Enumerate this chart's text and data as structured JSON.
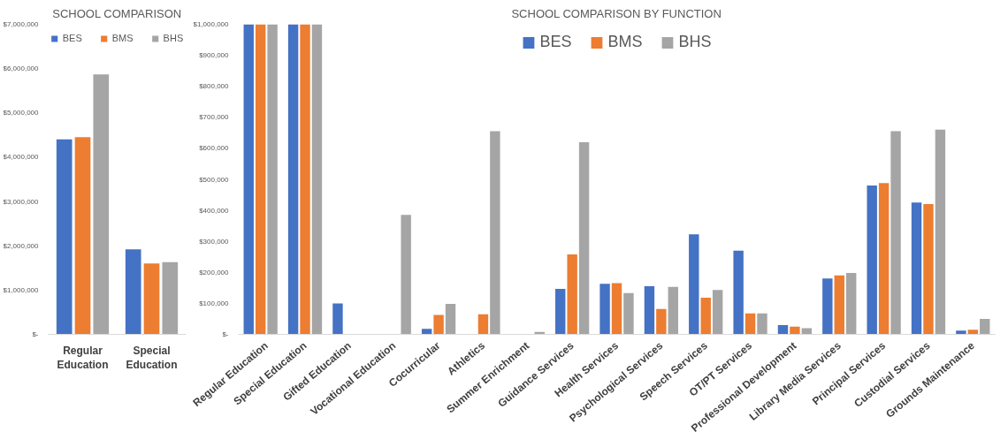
{
  "chart_data": [
    {
      "type": "bar",
      "title": "SCHOOL COMPARISON",
      "categories": [
        "Regular\nEducation",
        "Special\nEducation"
      ],
      "series": [
        {
          "name": "BES",
          "color": "#4472c4",
          "values": [
            4400000,
            1920000
          ]
        },
        {
          "name": "BMS",
          "color": "#ed7d31",
          "values": [
            4450000,
            1600000
          ]
        },
        {
          "name": "BHS",
          "color": "#a5a5a5",
          "values": [
            5870000,
            1630000
          ]
        }
      ],
      "ylim": [
        0,
        7000000
      ],
      "yticks": [
        {
          "value": 0,
          "label": "$-"
        },
        {
          "value": 1000000,
          "label": "$1,000,000"
        },
        {
          "value": 2000000,
          "label": "$2,000,000"
        },
        {
          "value": 3000000,
          "label": "$3,000,000"
        },
        {
          "value": 4000000,
          "label": "$4,000,000"
        },
        {
          "value": 5000000,
          "label": "$5,000,000"
        },
        {
          "value": 6000000,
          "label": "$6,000,000"
        },
        {
          "value": 7000000,
          "label": "$7,000,000"
        }
      ],
      "grid": false,
      "legend": "top"
    },
    {
      "type": "bar",
      "title": "SCHOOL COMPARISON BY FUNCTION",
      "categories": [
        "Regular Education",
        "Special Education",
        "Gifted Education",
        "Vocational Education",
        "Cocurricular",
        "Athletics",
        "Summer Enrichment",
        "Guidance Services",
        "Health Services",
        "Psychological Services",
        "Speech Services",
        "OT/PT Services",
        "Professional Development",
        "Library Media Services",
        "Principal Services",
        "Custodial Services",
        "Grounds Maintenance"
      ],
      "series": [
        {
          "name": "BES",
          "color": "#4472c4",
          "values": [
            1000000,
            1000000,
            100000,
            0,
            18000,
            0,
            0,
            147000,
            163000,
            155000,
            323000,
            270000,
            30000,
            180000,
            480000,
            425000,
            12000
          ]
        },
        {
          "name": "BMS",
          "color": "#ed7d31",
          "values": [
            1000000,
            1000000,
            0,
            0,
            63000,
            65000,
            0,
            258000,
            165000,
            82000,
            118000,
            68000,
            25000,
            190000,
            488000,
            420000,
            15000
          ]
        },
        {
          "name": "BHS",
          "color": "#a5a5a5",
          "values": [
            1000000,
            1000000,
            0,
            385000,
            98000,
            655000,
            8000,
            620000,
            133000,
            153000,
            143000,
            68000,
            20000,
            198000,
            655000,
            660000,
            50000
          ]
        }
      ],
      "ylim": [
        0,
        1000000
      ],
      "yticks": [
        {
          "value": 0,
          "label": "$-"
        },
        {
          "value": 100000,
          "label": "$100,000"
        },
        {
          "value": 200000,
          "label": "$200,000"
        },
        {
          "value": 300000,
          "label": "$300,000"
        },
        {
          "value": 400000,
          "label": "$400,000"
        },
        {
          "value": 500000,
          "label": "$500,000"
        },
        {
          "value": 600000,
          "label": "$600,000"
        },
        {
          "value": 700000,
          "label": "$700,000"
        },
        {
          "value": 800000,
          "label": "$800,000"
        },
        {
          "value": 900000,
          "label": "$900,000"
        },
        {
          "value": 1000000,
          "label": "$1,000,000"
        }
      ],
      "grid": false,
      "legend": "top"
    }
  ]
}
